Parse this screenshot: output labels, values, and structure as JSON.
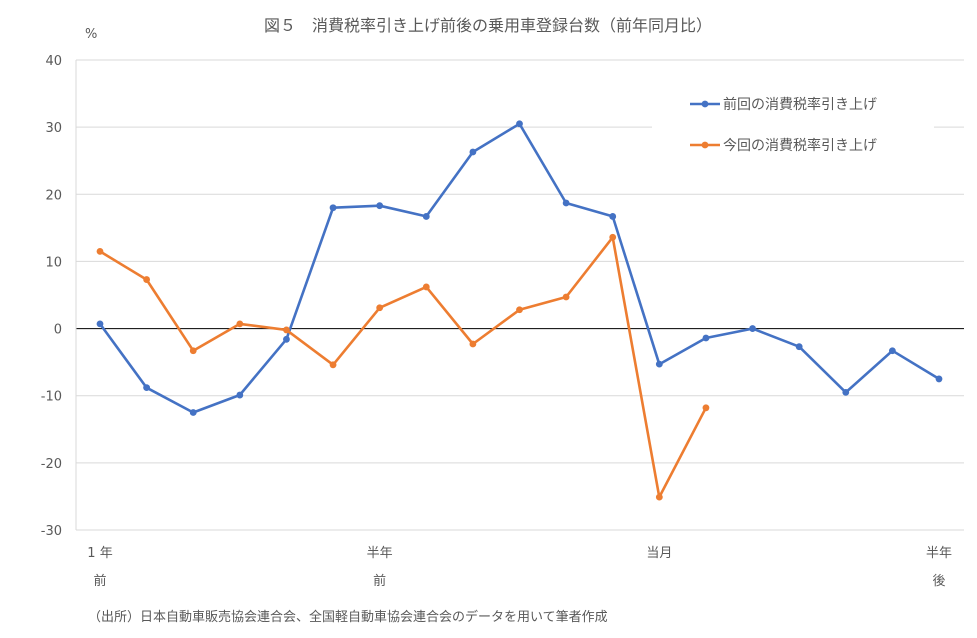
{
  "chart_data": {
    "type": "line",
    "title": "図５　消費税率引き上げ前後の乗用車登録台数（前年同月比）",
    "ylabel": "%",
    "ylim": [
      -30,
      40
    ],
    "yticks": [
      "40",
      "30",
      "20",
      "10",
      "0",
      "-10",
      "-20",
      "-30"
    ],
    "grid": true,
    "legend_position": "top-right",
    "x_tick_labels": [
      {
        "index": 0,
        "line1": "1 年",
        "line2": "前"
      },
      {
        "index": 6,
        "line1": "半年",
        "line2": "前"
      },
      {
        "index": 12,
        "line1": "当月",
        "line2": ""
      },
      {
        "index": 18,
        "line1": "半年",
        "line2": "後"
      }
    ],
    "series": [
      {
        "name": "前回の消費税率引き上げ",
        "color": "#4472C4",
        "values": [
          0.7,
          -8.8,
          -12.5,
          -9.9,
          -1.6,
          18.0,
          18.3,
          16.7,
          26.3,
          30.5,
          18.7,
          16.7,
          -5.3,
          -1.4,
          0.0,
          -2.7,
          -9.5,
          -3.3,
          -7.5
        ]
      },
      {
        "name": "今回の消費税率引き上げ",
        "color": "#ED7D31",
        "values": [
          11.5,
          7.3,
          -3.3,
          0.7,
          -0.2,
          -5.4,
          3.1,
          6.2,
          -2.3,
          2.8,
          4.7,
          13.6,
          -25.1,
          -11.8
        ]
      }
    ]
  },
  "source_note": "（出所）日本自動車販売協会連合会、全国軽自動車協会連合会のデータを用いて筆者作成"
}
